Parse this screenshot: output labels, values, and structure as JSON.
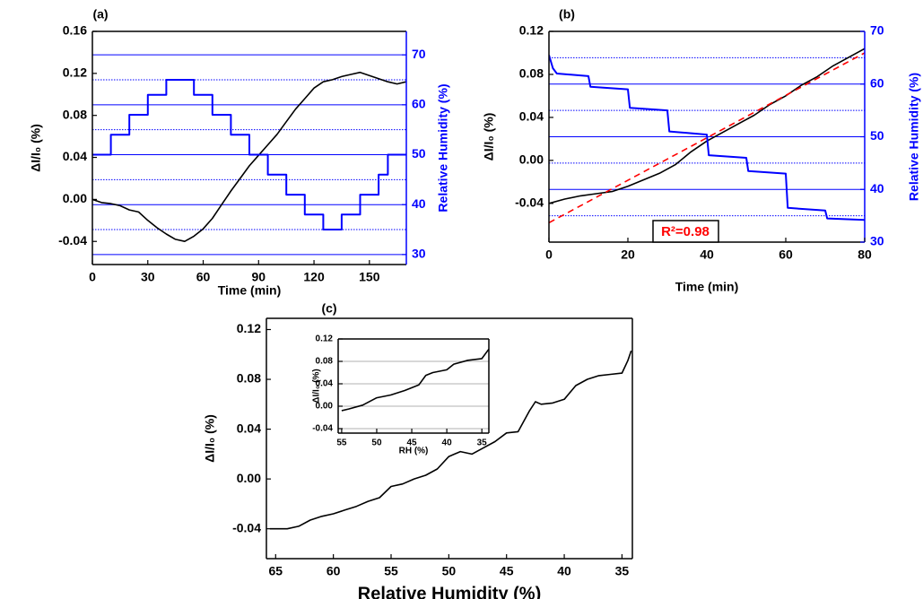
{
  "chart_data": [
    {
      "type": "line",
      "title": "(a)",
      "xlabel": "Time (min)",
      "ylabel": "ΔI/I₀ (%)",
      "y2label": "Relative Humidity (%)",
      "xlim": [
        0,
        170
      ],
      "xticks": [
        0,
        30,
        60,
        90,
        120,
        150
      ],
      "ylim": [
        -0.062,
        0.16
      ],
      "yticks": [
        -0.04,
        {
          "value": 0,
          "label": "0.00"
        },
        0.04,
        0.08,
        0.12,
        0.16
      ],
      "y2lim": [
        28,
        74.7
      ],
      "y2ticks": [
        30,
        40,
        50,
        60,
        70
      ],
      "y2minor": [
        35,
        45,
        55,
        65
      ],
      "y2grid": true,
      "series": [
        {
          "name": "ΔI/I₀",
          "color": "#000000",
          "x": [
            0,
            5,
            10,
            15,
            20,
            25,
            30,
            35,
            40,
            45,
            50,
            55,
            60,
            65,
            70,
            75,
            80,
            85,
            90,
            95,
            100,
            105,
            110,
            115,
            120,
            125,
            130,
            135,
            140,
            145,
            150,
            155,
            160,
            165,
            170
          ],
          "values": [
            0,
            -0.003,
            -0.004,
            -0.006,
            -0.01,
            -0.012,
            -0.02,
            -0.027,
            -0.033,
            -0.038,
            -0.04,
            -0.035,
            -0.028,
            -0.018,
            -0.005,
            0.008,
            0.02,
            0.032,
            0.042,
            0.052,
            0.062,
            0.074,
            0.086,
            0.096,
            0.106,
            0.112,
            0.114,
            0.117,
            0.119,
            0.121,
            0.118,
            0.115,
            0.112,
            0.11,
            0.112
          ]
        },
        {
          "name": "RH",
          "color": "#0000ff",
          "axis": "y2",
          "x": [
            0,
            10,
            10,
            20,
            20,
            30,
            30,
            40,
            40,
            55,
            55,
            65,
            65,
            75,
            75,
            85,
            85,
            95,
            95,
            105,
            105,
            115,
            115,
            125,
            125,
            135,
            135,
            145,
            145,
            155,
            155,
            160,
            160,
            170
          ],
          "values": [
            50,
            50,
            54,
            54,
            58,
            58,
            62,
            62,
            65,
            65,
            62,
            62,
            58,
            58,
            54,
            54,
            50,
            50,
            46,
            46,
            42,
            42,
            38,
            38,
            35,
            35,
            38,
            38,
            42,
            42,
            46,
            46,
            50,
            50
          ]
        }
      ]
    },
    {
      "type": "line",
      "title": "(b)",
      "xlabel": "Time (min)",
      "ylabel": "ΔI/I₀ (%)",
      "y2label": "Relative Humidity (%)",
      "annotation": "R²=0.98",
      "xlim": [
        0,
        80
      ],
      "xticks": [
        0,
        20,
        40,
        60,
        80
      ],
      "ylim": [
        -0.076,
        0.12
      ],
      "yticks": [
        -0.04,
        {
          "value": 0,
          "label": "0.00"
        },
        0.04,
        0.08,
        0.12
      ],
      "y2lim": [
        30,
        70
      ],
      "y2ticks": [
        30,
        40,
        50,
        60,
        70
      ],
      "y2minor": [
        35,
        45,
        55,
        65
      ],
      "y2grid": true,
      "series": [
        {
          "name": "ΔI/I₀",
          "color": "#000000",
          "x": [
            0,
            4,
            8,
            12,
            16,
            20,
            24,
            28,
            32,
            36,
            40,
            44,
            48,
            52,
            56,
            60,
            64,
            68,
            72,
            76,
            80
          ],
          "values": [
            -0.04,
            -0.036,
            -0.033,
            -0.031,
            -0.029,
            -0.024,
            -0.018,
            -0.012,
            -0.004,
            0.008,
            0.018,
            0.026,
            0.034,
            0.042,
            0.052,
            0.06,
            0.07,
            0.078,
            0.088,
            0.096,
            0.104
          ]
        },
        {
          "name": "fit",
          "color": "#ff0000",
          "dashed": true,
          "x": [
            0,
            80
          ],
          "values": [
            -0.058,
            0.1
          ]
        },
        {
          "name": "RH",
          "color": "#0000ff",
          "axis": "y2",
          "x": [
            0,
            1,
            2,
            10,
            10.5,
            20,
            20.5,
            30,
            30.5,
            40,
            40.5,
            50,
            50.5,
            60,
            60.5,
            70,
            70.5,
            80
          ],
          "values": [
            65.5,
            63,
            62,
            61.5,
            59.5,
            59,
            55.5,
            55,
            51,
            50.4,
            46.5,
            46,
            43.5,
            43,
            36.5,
            36,
            34.5,
            34.2
          ]
        }
      ]
    },
    {
      "type": "line",
      "title": "(c)",
      "xlabel": "Relative Humidity (%)",
      "ylabel": "ΔI/I₀ (%)",
      "xlim": [
        65.8,
        34.1
      ],
      "xticks": [
        65,
        60,
        55,
        50,
        45,
        40,
        35
      ],
      "ylim": [
        -0.064,
        0.129
      ],
      "yticks": [
        -0.04,
        {
          "value": 0,
          "label": "0.00"
        },
        0.04,
        0.08,
        0.12
      ],
      "series": [
        {
          "name": "ΔI/I₀",
          "color": "#000000",
          "x": [
            65.5,
            64,
            63,
            62,
            61,
            60,
            59,
            58,
            57,
            56,
            55,
            54,
            53,
            52,
            51,
            50,
            49,
            48,
            47,
            46,
            45,
            44,
            43,
            42.5,
            42,
            41,
            40,
            39,
            38,
            37,
            36,
            35,
            34.5,
            34.2
          ],
          "values": [
            -0.04,
            -0.04,
            -0.038,
            -0.033,
            -0.03,
            -0.028,
            -0.025,
            -0.022,
            -0.018,
            -0.015,
            -0.006,
            -0.004,
            0,
            0.003,
            0.008,
            0.018,
            0.022,
            0.02,
            0.025,
            0.03,
            0.037,
            0.038,
            0.055,
            0.062,
            0.06,
            0.061,
            0.064,
            0.075,
            0.08,
            0.083,
            0.084,
            0.085,
            0.095,
            0.103
          ]
        }
      ]
    },
    {
      "type": "line",
      "xlabel": "RH (%)",
      "ylabel": "ΔI/I₀ (%)",
      "grid": true,
      "xlim": [
        55.5,
        34
      ],
      "xticks": [
        55,
        50,
        45,
        40,
        35
      ],
      "ylim": [
        -0.048,
        0.12
      ],
      "yticks": [
        -0.04,
        {
          "value": 0,
          "label": "0.00"
        },
        0.04,
        0.08,
        0.12
      ],
      "series": [
        {
          "name": "ΔI/I₀",
          "color": "#000000",
          "x": [
            55,
            54,
            52,
            50,
            48,
            46,
            44,
            43,
            42,
            40,
            39,
            37,
            35,
            34
          ],
          "values": [
            -0.008,
            -0.005,
            0.002,
            0.015,
            0.02,
            0.028,
            0.038,
            0.055,
            0.06,
            0.065,
            0.075,
            0.082,
            0.085,
            0.102
          ]
        }
      ]
    }
  ]
}
